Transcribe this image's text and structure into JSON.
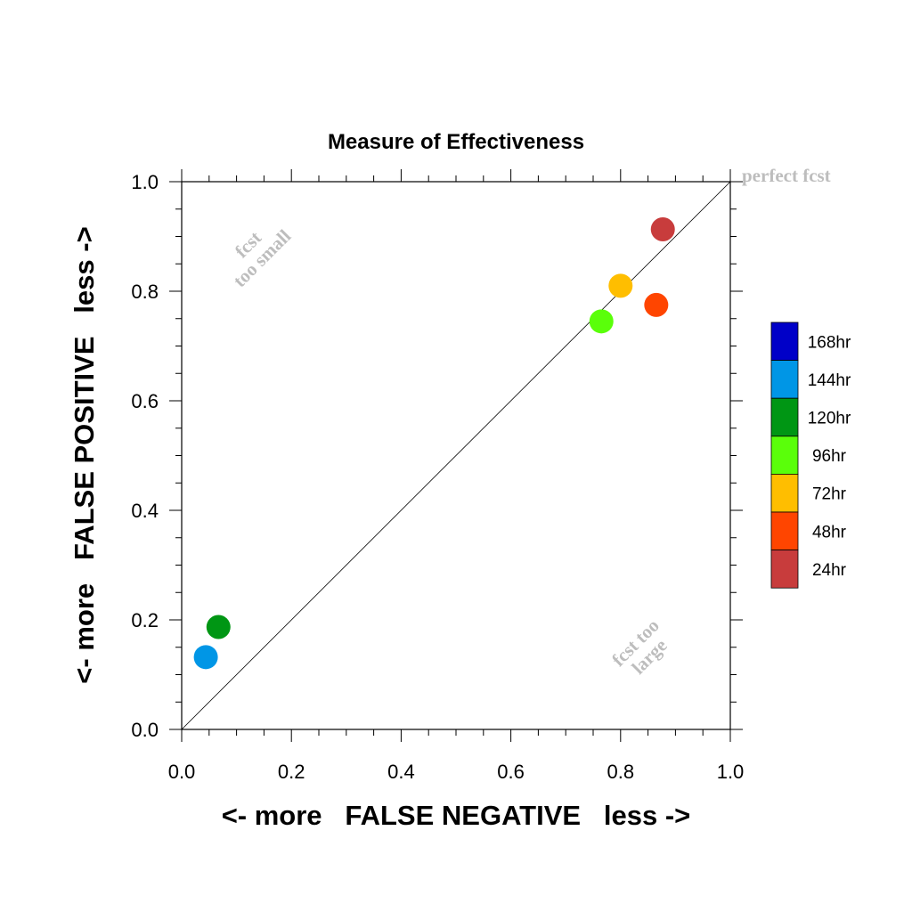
{
  "chart_data": {
    "type": "scatter",
    "title": "Measure of Effectiveness",
    "xlabel": "<- more   FALSE NEGATIVE   less ->",
    "ylabel": "<- more   FALSE POSITIVE   less ->",
    "xlim": [
      0.0,
      1.0
    ],
    "ylim": [
      0.0,
      1.0
    ],
    "xticks": [
      "0.0",
      "0.2",
      "0.4",
      "0.6",
      "0.8",
      "1.0"
    ],
    "yticks": [
      "0.0",
      "0.2",
      "0.4",
      "0.6",
      "0.8",
      "1.0"
    ],
    "reference_line": {
      "from": [
        0,
        0
      ],
      "to": [
        1,
        1
      ]
    },
    "annotations": {
      "perfect": "perfect fcst",
      "too_small": [
        "fcst",
        "too small"
      ],
      "too_large": [
        "fcst too",
        "large"
      ]
    },
    "points": [
      {
        "label": "24hr",
        "x": 0.877,
        "y": 0.913,
        "color": "#c83c3c"
      },
      {
        "label": "48hr",
        "x": 0.865,
        "y": 0.775,
        "color": "#ff4500"
      },
      {
        "label": "72hr",
        "x": 0.8,
        "y": 0.81,
        "color": "#ffbe00"
      },
      {
        "label": "96hr",
        "x": 0.765,
        "y": 0.745,
        "color": "#5aff0a"
      },
      {
        "label": "120hr",
        "x": 0.067,
        "y": 0.187,
        "color": "#009614"
      },
      {
        "label": "144hr",
        "x": 0.044,
        "y": 0.132,
        "color": "#0096e6"
      }
    ],
    "legend": [
      {
        "label": "168hr",
        "color": "#0000c8"
      },
      {
        "label": "144hr",
        "color": "#0096e6"
      },
      {
        "label": "120hr",
        "color": "#009614"
      },
      {
        "label": "96hr",
        "color": "#5aff0a"
      },
      {
        "label": "72hr",
        "color": "#ffbe00"
      },
      {
        "label": "48hr",
        "color": "#ff4500"
      },
      {
        "label": "24hr",
        "color": "#c83c3c"
      }
    ],
    "legend_position": "right"
  }
}
